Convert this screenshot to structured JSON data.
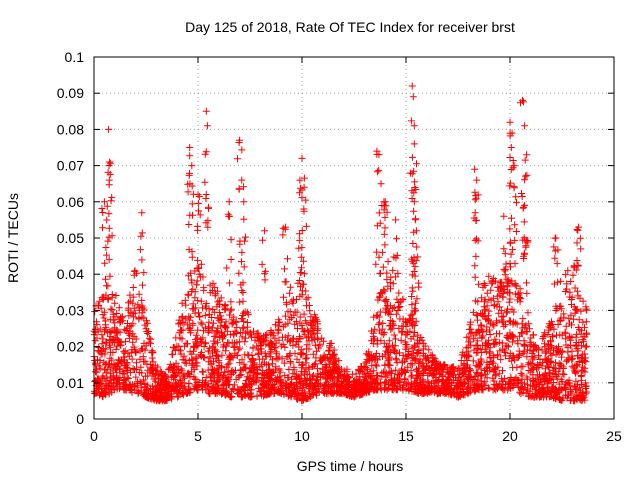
{
  "chart_data": {
    "type": "scatter",
    "title": "Day 125 of 2018, Rate Of TEC Index for receiver brst",
    "xlabel": "GPS time / hours",
    "ylabel": "ROTI / TECUs",
    "xlim": [
      0,
      25
    ],
    "ylim": [
      0,
      0.1
    ],
    "x_ticks": [
      0,
      5,
      10,
      15,
      20,
      25
    ],
    "x_tick_labels": [
      "0",
      "5",
      "10",
      "15",
      "20",
      "25"
    ],
    "y_ticks": [
      0,
      0.01,
      0.02,
      0.03,
      0.04,
      0.05,
      0.06,
      0.07,
      0.08,
      0.09,
      0.1
    ],
    "y_tick_labels": [
      "0",
      "0.01",
      "0.02",
      "0.03",
      "0.04",
      "0.05",
      "0.06",
      "0.07",
      "0.08",
      "0.09",
      "0.1"
    ],
    "grid": true,
    "marker": "plus",
    "series": [
      {
        "name": "ROTI",
        "color": "#ff0000",
        "x_start": 0.0,
        "x_end": 23.7,
        "envelope": {
          "x": [
            0.0,
            0.5,
            1.0,
            1.5,
            2.0,
            2.5,
            3.0,
            3.5,
            4.0,
            4.5,
            5.0,
            5.5,
            6.0,
            6.5,
            7.0,
            7.5,
            8.0,
            8.5,
            9.0,
            9.5,
            10.0,
            10.5,
            11.0,
            11.5,
            12.0,
            12.5,
            13.0,
            13.5,
            14.0,
            14.5,
            15.0,
            15.5,
            16.0,
            16.5,
            17.0,
            17.5,
            18.0,
            18.5,
            19.0,
            19.5,
            20.0,
            20.5,
            21.0,
            21.5,
            22.0,
            22.5,
            23.0,
            23.5,
            23.7
          ],
          "low": [
            0.007,
            0.006,
            0.008,
            0.008,
            0.007,
            0.006,
            0.005,
            0.005,
            0.006,
            0.007,
            0.008,
            0.007,
            0.007,
            0.006,
            0.006,
            0.006,
            0.006,
            0.007,
            0.007,
            0.006,
            0.005,
            0.006,
            0.007,
            0.007,
            0.007,
            0.006,
            0.007,
            0.008,
            0.008,
            0.008,
            0.008,
            0.007,
            0.007,
            0.007,
            0.007,
            0.006,
            0.007,
            0.008,
            0.008,
            0.008,
            0.008,
            0.007,
            0.006,
            0.006,
            0.006,
            0.005,
            0.005,
            0.005,
            0.005
          ],
          "high": [
            0.03,
            0.04,
            0.035,
            0.028,
            0.045,
            0.03,
            0.015,
            0.012,
            0.025,
            0.04,
            0.045,
            0.04,
            0.035,
            0.03,
            0.038,
            0.03,
            0.022,
            0.025,
            0.03,
            0.038,
            0.04,
            0.03,
            0.025,
            0.02,
            0.014,
            0.014,
            0.015,
            0.03,
            0.045,
            0.04,
            0.032,
            0.025,
            0.02,
            0.016,
            0.015,
            0.014,
            0.025,
            0.038,
            0.04,
            0.038,
            0.04,
            0.035,
            0.025,
            0.022,
            0.028,
            0.04,
            0.045,
            0.035,
            0.03
          ]
        },
        "spikes": [
          {
            "x": 0.5,
            "y": 0.06
          },
          {
            "x": 0.7,
            "y": 0.08
          },
          {
            "x": 0.75,
            "y": 0.071
          },
          {
            "x": 2.3,
            "y": 0.057
          },
          {
            "x": 4.6,
            "y": 0.075
          },
          {
            "x": 4.7,
            "y": 0.07
          },
          {
            "x": 5.0,
            "y": 0.062
          },
          {
            "x": 5.4,
            "y": 0.085
          },
          {
            "x": 5.45,
            "y": 0.081
          },
          {
            "x": 6.5,
            "y": 0.06
          },
          {
            "x": 7.0,
            "y": 0.077
          },
          {
            "x": 7.1,
            "y": 0.066
          },
          {
            "x": 7.2,
            "y": 0.06
          },
          {
            "x": 8.2,
            "y": 0.052
          },
          {
            "x": 9.2,
            "y": 0.053
          },
          {
            "x": 10.0,
            "y": 0.072
          },
          {
            "x": 9.9,
            "y": 0.066
          },
          {
            "x": 10.1,
            "y": 0.064
          },
          {
            "x": 13.6,
            "y": 0.074
          },
          {
            "x": 13.8,
            "y": 0.065
          },
          {
            "x": 14.0,
            "y": 0.06
          },
          {
            "x": 14.5,
            "y": 0.055
          },
          {
            "x": 15.3,
            "y": 0.092
          },
          {
            "x": 15.35,
            "y": 0.089
          },
          {
            "x": 15.4,
            "y": 0.081
          },
          {
            "x": 15.4,
            "y": 0.076
          },
          {
            "x": 15.4,
            "y": 0.06
          },
          {
            "x": 15.5,
            "y": 0.052
          },
          {
            "x": 18.3,
            "y": 0.069
          },
          {
            "x": 18.4,
            "y": 0.066
          },
          {
            "x": 19.7,
            "y": 0.056
          },
          {
            "x": 20.0,
            "y": 0.082
          },
          {
            "x": 20.1,
            "y": 0.079
          },
          {
            "x": 20.2,
            "y": 0.07
          },
          {
            "x": 20.6,
            "y": 0.088
          },
          {
            "x": 20.7,
            "y": 0.081
          },
          {
            "x": 20.8,
            "y": 0.073
          },
          {
            "x": 20.7,
            "y": 0.059
          },
          {
            "x": 22.2,
            "y": 0.05
          },
          {
            "x": 23.3,
            "y": 0.053
          }
        ]
      }
    ]
  }
}
